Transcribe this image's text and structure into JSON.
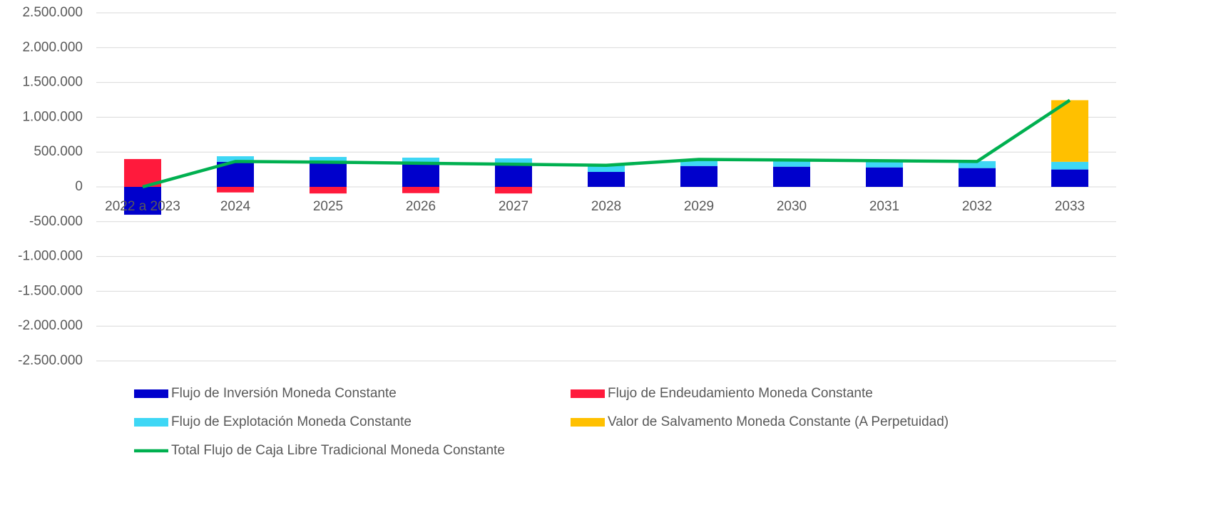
{
  "chart_data": {
    "type": "bar",
    "categories": [
      "2022 a 2023",
      "2024",
      "2025",
      "2026",
      "2027",
      "2028",
      "2029",
      "2030",
      "2031",
      "2032",
      "2033"
    ],
    "series": [
      {
        "name": "Flujo de Inversión Moneda Constante",
        "color": "#0000cc",
        "values": [
          -400000,
          360000,
          350000,
          340000,
          330000,
          215000,
          300000,
          290000,
          280000,
          270000,
          250000
        ]
      },
      {
        "name": "Flujo de Endeudamiento Moneda Constante",
        "color": "#ff1a3c",
        "values": [
          400000,
          -80000,
          -95000,
          -90000,
          -95000,
          0,
          0,
          0,
          0,
          0,
          0
        ]
      },
      {
        "name": "Flujo de Explotación Moneda Constante",
        "color": "#3ed7f5",
        "values": [
          0,
          80000,
          80000,
          80000,
          80000,
          100000,
          100000,
          100000,
          90000,
          100000,
          110000
        ]
      },
      {
        "name": "Valor de Salvamento Moneda Constante (A Perpetuidad)",
        "color": "#ffc000",
        "values": [
          0,
          0,
          0,
          0,
          0,
          0,
          0,
          0,
          0,
          0,
          885000
        ]
      },
      {
        "name": "Total Flujo de Caja Libre Tradicional Moneda Constante",
        "color": "#00b050",
        "type": "line",
        "values": [
          0,
          365000,
          355000,
          340000,
          325000,
          310000,
          395000,
          385000,
          375000,
          365000,
          1245000
        ]
      }
    ],
    "stacked": true,
    "ylim": [
      -2500000,
      2500000
    ],
    "yticks": [
      {
        "value": -2500000,
        "label": "-2.500.000"
      },
      {
        "value": -2000000,
        "label": "-2.000.000"
      },
      {
        "value": -1500000,
        "label": "-1.500.000"
      },
      {
        "value": -1000000,
        "label": "-1.000.000"
      },
      {
        "value": -500000,
        "label": "-500.000"
      },
      0,
      {
        "value": 500000,
        "label": "500.000"
      },
      {
        "value": 1000000,
        "label": "1.000.000"
      },
      {
        "value": 1500000,
        "label": "1.500.000"
      },
      {
        "value": 2000000,
        "label": "2.000.000"
      },
      {
        "value": 2500000,
        "label": "2.500.000"
      }
    ],
    "grid": true,
    "legend": "bottom"
  }
}
